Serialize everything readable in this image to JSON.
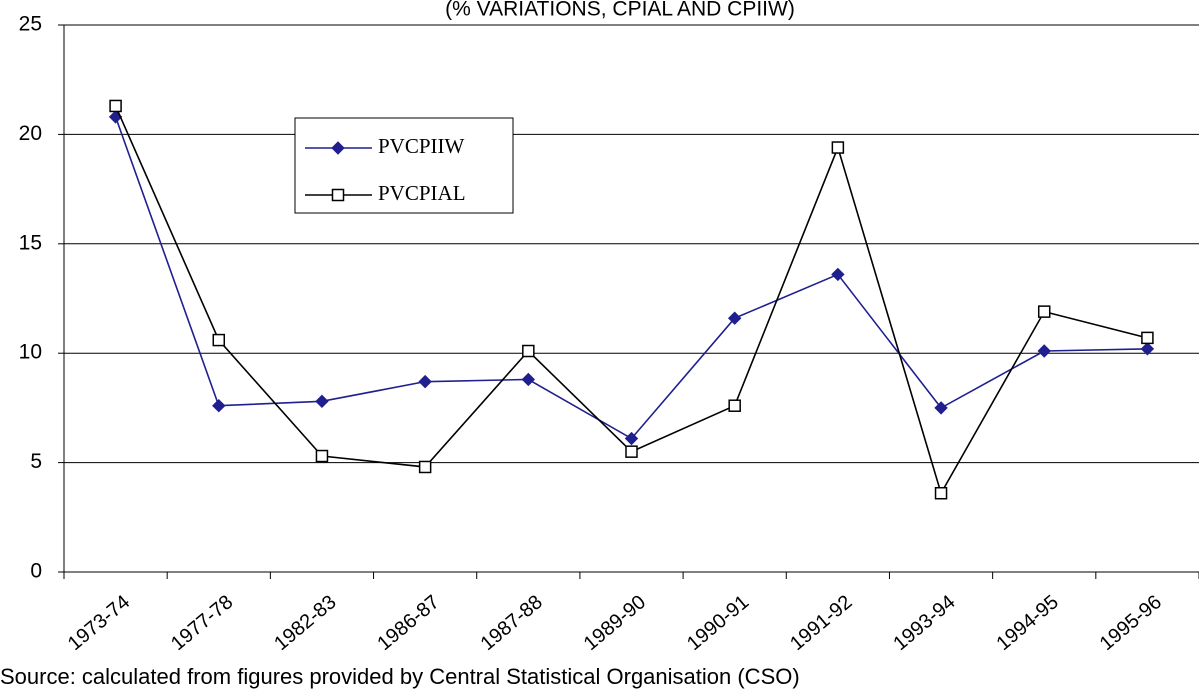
{
  "chart_data": {
    "type": "line",
    "title": "(% VARIATIONS, CPIAL AND CPIIW)",
    "source": "Source: calculated from figures provided by Central Statistical Organisation (CSO)",
    "categories": [
      "1973-74",
      "1977-78",
      "1982-83",
      "1986-87",
      "1987-88",
      "1989-90",
      "1990-91",
      "1991-92",
      "1993-94",
      "1994-95",
      "1995-96"
    ],
    "series": [
      {
        "name": "PVCPIIW",
        "color": "#1f1f8f",
        "marker": "diamond",
        "values": [
          20.8,
          7.6,
          7.8,
          8.7,
          8.8,
          6.1,
          11.6,
          13.6,
          7.5,
          10.1,
          10.2
        ]
      },
      {
        "name": "PVCPIAL",
        "color": "#000000",
        "marker": "square",
        "values": [
          21.3,
          10.6,
          5.3,
          4.8,
          10.1,
          5.5,
          7.6,
          19.4,
          3.6,
          11.9,
          10.7
        ]
      }
    ],
    "ylim": [
      0,
      25
    ],
    "yticks": [
      0,
      5,
      10,
      15,
      20,
      25
    ],
    "grid": true
  }
}
